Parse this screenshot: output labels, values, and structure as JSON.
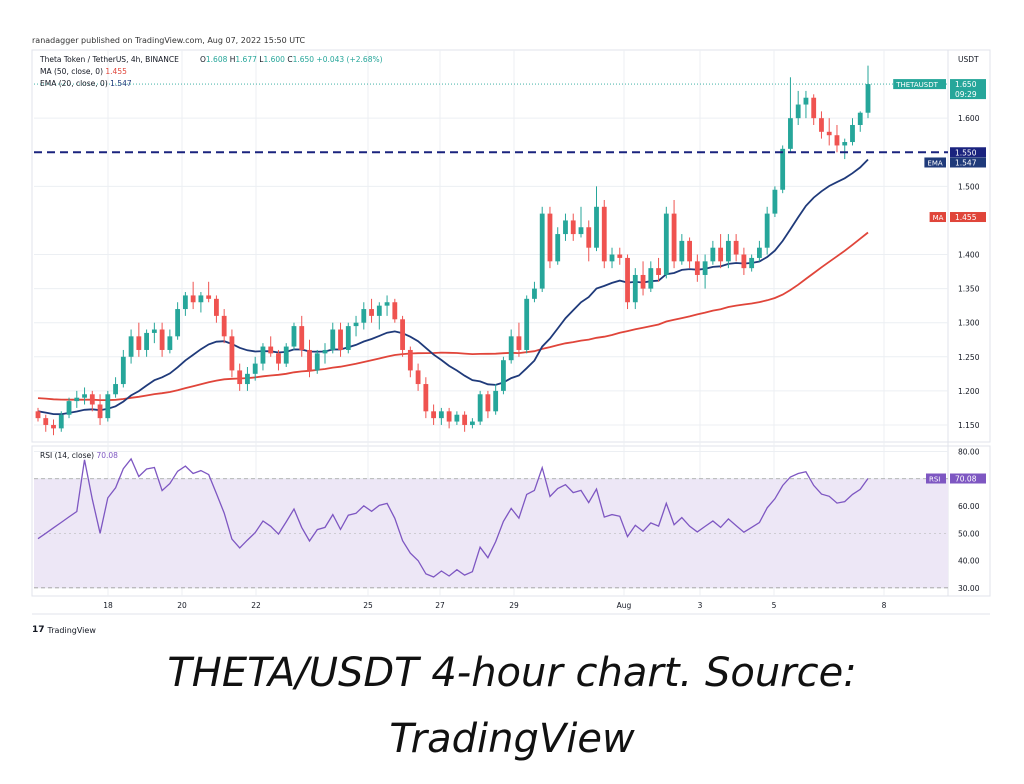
{
  "publisher_line": "ranadagger published on TradingView.com, Aug 07, 2022 15:50 UTC",
  "caption": {
    "line1": "THETA/USDT 4-hour chart. Source:",
    "line2": "TradingView"
  },
  "logo": {
    "text": "TradingView",
    "icon": "tradingview-logo-icon"
  },
  "colors": {
    "up": "#26a69a",
    "down": "#ef5350",
    "ema": "#1f3a7a",
    "ma": "#e0453a",
    "rsi": "#7e57c2",
    "rsi_band": "#ede7f6",
    "level": "#1a237e",
    "grid": "#eceff3",
    "price_tag": "#26a69a"
  },
  "chart_data": [
    {
      "type": "candlestick",
      "title": "Theta Token / TetherUS, 4h, BINANCE",
      "ohlc_readout": {
        "O": "1.608",
        "H": "1.677",
        "L": "1.600",
        "C": "1.650",
        "change": "+0.043 (+2.68%)"
      },
      "indicators": [
        {
          "label": "MA (50, close, 0)",
          "value": "1.455"
        },
        {
          "label": "EMA (20, close, 0)",
          "value": "1.547"
        }
      ],
      "currency_label": "USDT",
      "y_ticks": [
        "1.600",
        "1.500",
        "1.400",
        "1.350",
        "1.300",
        "1.250",
        "1.200",
        "1.150"
      ],
      "ylim": [
        1.125,
        1.7
      ],
      "x_ticks": [
        "18",
        "20",
        "22",
        "25",
        "27",
        "29",
        "Aug",
        "3",
        "5",
        "8"
      ],
      "price_tags": [
        {
          "label": "THETAUSDT",
          "value": "1.650",
          "sub": "09:29"
        },
        {
          "label": "",
          "value": "1.550"
        },
        {
          "label": "EMA",
          "value": "1.547"
        },
        {
          "label": "MA",
          "value": "1.455"
        }
      ],
      "horizontal_level": 1.55,
      "candles": [
        [
          1.17,
          1.175,
          1.155,
          1.16
        ],
        [
          1.16,
          1.165,
          1.14,
          1.15
        ],
        [
          1.15,
          1.158,
          1.135,
          1.145
        ],
        [
          1.145,
          1.17,
          1.14,
          1.165
        ],
        [
          1.165,
          1.19,
          1.16,
          1.185
        ],
        [
          1.185,
          1.2,
          1.175,
          1.19
        ],
        [
          1.19,
          1.205,
          1.18,
          1.195
        ],
        [
          1.195,
          1.2,
          1.17,
          1.18
        ],
        [
          1.18,
          1.195,
          1.15,
          1.16
        ],
        [
          1.16,
          1.2,
          1.155,
          1.195
        ],
        [
          1.195,
          1.22,
          1.19,
          1.21
        ],
        [
          1.21,
          1.26,
          1.205,
          1.25
        ],
        [
          1.25,
          1.29,
          1.24,
          1.28
        ],
        [
          1.28,
          1.3,
          1.25,
          1.26
        ],
        [
          1.26,
          1.29,
          1.25,
          1.285
        ],
        [
          1.285,
          1.3,
          1.27,
          1.29
        ],
        [
          1.29,
          1.3,
          1.25,
          1.26
        ],
        [
          1.26,
          1.29,
          1.255,
          1.28
        ],
        [
          1.28,
          1.33,
          1.275,
          1.32
        ],
        [
          1.32,
          1.345,
          1.31,
          1.34
        ],
        [
          1.34,
          1.36,
          1.32,
          1.33
        ],
        [
          1.33,
          1.345,
          1.315,
          1.34
        ],
        [
          1.34,
          1.36,
          1.33,
          1.335
        ],
        [
          1.335,
          1.34,
          1.3,
          1.31
        ],
        [
          1.31,
          1.32,
          1.27,
          1.28
        ],
        [
          1.28,
          1.29,
          1.22,
          1.23
        ],
        [
          1.23,
          1.24,
          1.2,
          1.21
        ],
        [
          1.21,
          1.235,
          1.2,
          1.225
        ],
        [
          1.225,
          1.25,
          1.215,
          1.24
        ],
        [
          1.24,
          1.27,
          1.23,
          1.265
        ],
        [
          1.265,
          1.28,
          1.25,
          1.255
        ],
        [
          1.255,
          1.26,
          1.23,
          1.24
        ],
        [
          1.24,
          1.27,
          1.235,
          1.265
        ],
        [
          1.265,
          1.3,
          1.26,
          1.295
        ],
        [
          1.295,
          1.31,
          1.25,
          1.26
        ],
        [
          1.26,
          1.275,
          1.22,
          1.23
        ],
        [
          1.23,
          1.26,
          1.225,
          1.255
        ],
        [
          1.255,
          1.27,
          1.24,
          1.26
        ],
        [
          1.26,
          1.3,
          1.255,
          1.29
        ],
        [
          1.29,
          1.3,
          1.25,
          1.26
        ],
        [
          1.26,
          1.3,
          1.255,
          1.295
        ],
        [
          1.295,
          1.31,
          1.28,
          1.3
        ],
        [
          1.3,
          1.33,
          1.29,
          1.32
        ],
        [
          1.32,
          1.335,
          1.3,
          1.31
        ],
        [
          1.31,
          1.33,
          1.29,
          1.325
        ],
        [
          1.325,
          1.34,
          1.31,
          1.33
        ],
        [
          1.33,
          1.335,
          1.3,
          1.305
        ],
        [
          1.305,
          1.31,
          1.25,
          1.26
        ],
        [
          1.26,
          1.265,
          1.22,
          1.23
        ],
        [
          1.23,
          1.24,
          1.2,
          1.21
        ],
        [
          1.21,
          1.22,
          1.16,
          1.17
        ],
        [
          1.17,
          1.18,
          1.15,
          1.16
        ],
        [
          1.16,
          1.175,
          1.15,
          1.17
        ],
        [
          1.17,
          1.175,
          1.145,
          1.155
        ],
        [
          1.155,
          1.17,
          1.15,
          1.165
        ],
        [
          1.165,
          1.17,
          1.14,
          1.15
        ],
        [
          1.15,
          1.16,
          1.145,
          1.155
        ],
        [
          1.155,
          1.2,
          1.15,
          1.195
        ],
        [
          1.195,
          1.2,
          1.16,
          1.17
        ],
        [
          1.17,
          1.21,
          1.165,
          1.2
        ],
        [
          1.2,
          1.25,
          1.195,
          1.245
        ],
        [
          1.245,
          1.29,
          1.24,
          1.28
        ],
        [
          1.28,
          1.3,
          1.25,
          1.26
        ],
        [
          1.26,
          1.34,
          1.255,
          1.335
        ],
        [
          1.335,
          1.36,
          1.33,
          1.35
        ],
        [
          1.35,
          1.47,
          1.345,
          1.46
        ],
        [
          1.46,
          1.47,
          1.38,
          1.39
        ],
        [
          1.39,
          1.44,
          1.385,
          1.43
        ],
        [
          1.43,
          1.46,
          1.42,
          1.45
        ],
        [
          1.45,
          1.46,
          1.42,
          1.43
        ],
        [
          1.43,
          1.47,
          1.425,
          1.44
        ],
        [
          1.44,
          1.45,
          1.39,
          1.41
        ],
        [
          1.41,
          1.5,
          1.405,
          1.47
        ],
        [
          1.47,
          1.48,
          1.38,
          1.39
        ],
        [
          1.39,
          1.41,
          1.38,
          1.4
        ],
        [
          1.4,
          1.41,
          1.385,
          1.395
        ],
        [
          1.395,
          1.4,
          1.32,
          1.33
        ],
        [
          1.33,
          1.38,
          1.32,
          1.37
        ],
        [
          1.37,
          1.39,
          1.34,
          1.35
        ],
        [
          1.35,
          1.39,
          1.345,
          1.38
        ],
        [
          1.38,
          1.395,
          1.36,
          1.37
        ],
        [
          1.37,
          1.47,
          1.365,
          1.46
        ],
        [
          1.46,
          1.48,
          1.38,
          1.39
        ],
        [
          1.39,
          1.43,
          1.385,
          1.42
        ],
        [
          1.42,
          1.425,
          1.38,
          1.39
        ],
        [
          1.39,
          1.4,
          1.36,
          1.37
        ],
        [
          1.37,
          1.4,
          1.35,
          1.39
        ],
        [
          1.39,
          1.42,
          1.385,
          1.41
        ],
        [
          1.41,
          1.43,
          1.38,
          1.39
        ],
        [
          1.39,
          1.43,
          1.38,
          1.42
        ],
        [
          1.42,
          1.43,
          1.39,
          1.4
        ],
        [
          1.4,
          1.41,
          1.37,
          1.38
        ],
        [
          1.38,
          1.4,
          1.375,
          1.395
        ],
        [
          1.395,
          1.42,
          1.39,
          1.41
        ],
        [
          1.41,
          1.47,
          1.4,
          1.46
        ],
        [
          1.46,
          1.5,
          1.455,
          1.495
        ],
        [
          1.495,
          1.56,
          1.49,
          1.555
        ],
        [
          1.555,
          1.66,
          1.55,
          1.6
        ],
        [
          1.6,
          1.64,
          1.59,
          1.62
        ],
        [
          1.62,
          1.64,
          1.6,
          1.63
        ],
        [
          1.63,
          1.635,
          1.59,
          1.6
        ],
        [
          1.6,
          1.61,
          1.57,
          1.58
        ],
        [
          1.58,
          1.6,
          1.56,
          1.575
        ],
        [
          1.575,
          1.59,
          1.55,
          1.56
        ],
        [
          1.56,
          1.57,
          1.54,
          1.565
        ],
        [
          1.565,
          1.6,
          1.56,
          1.59
        ],
        [
          1.59,
          1.61,
          1.58,
          1.608
        ],
        [
          1.608,
          1.677,
          1.6,
          1.65
        ]
      ]
    },
    {
      "type": "line",
      "title": "RSI (14, close)",
      "readout": "70.08",
      "y_ticks": [
        "80.00",
        "70.00",
        "60.00",
        "50.00",
        "40.00",
        "30.00"
      ],
      "ylim": [
        27,
        82
      ],
      "band": [
        30,
        70
      ],
      "tag": {
        "label": "RSI",
        "value": "70.08"
      }
    }
  ]
}
